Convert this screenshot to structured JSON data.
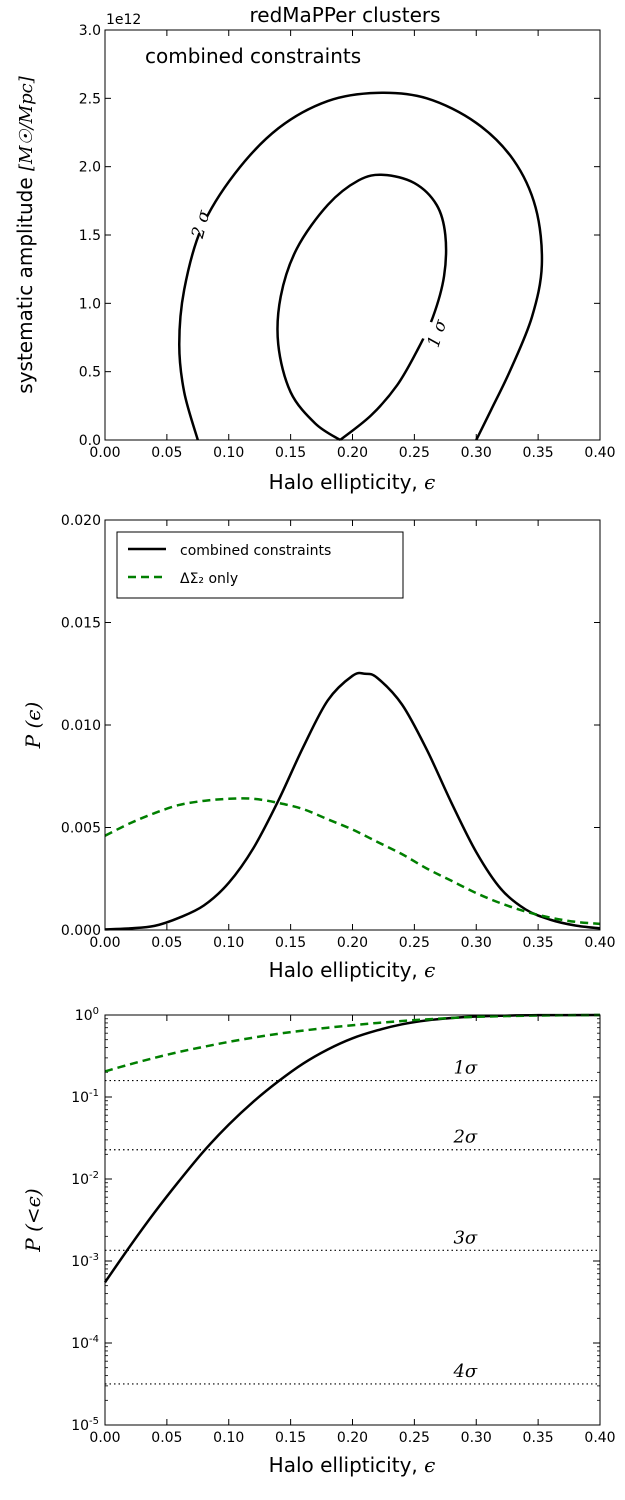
{
  "chart_data": [
    {
      "type": "contour",
      "title": "redMaPPer clusters",
      "annotation": "combined constraints",
      "xlabel": "Halo ellipticity, ",
      "xlabel_symbol": "ϵ",
      "ylabel": "systematic amplitude ",
      "ylabel_unit": "[M☉/Mpc]",
      "offset_label": "1e12",
      "xlim": [
        0.0,
        0.4
      ],
      "ylim": [
        0.0,
        3.0
      ],
      "xticks": [
        "0.00",
        "0.05",
        "0.10",
        "0.15",
        "0.20",
        "0.25",
        "0.30",
        "0.35",
        "0.40"
      ],
      "yticks": [
        "0.0",
        "0.5",
        "1.0",
        "1.5",
        "2.0",
        "2.5",
        "3.0"
      ],
      "contours": [
        {
          "label": "1 σ",
          "points": [
            [
              0.19,
              0.0
            ],
            [
              0.17,
              0.12
            ],
            [
              0.15,
              0.35
            ],
            [
              0.14,
              0.7
            ],
            [
              0.142,
              1.05
            ],
            [
              0.155,
              1.4
            ],
            [
              0.18,
              1.72
            ],
            [
              0.205,
              1.9
            ],
            [
              0.225,
              1.94
            ],
            [
              0.25,
              1.88
            ],
            [
              0.268,
              1.72
            ],
            [
              0.275,
              1.5
            ],
            [
              0.274,
              1.2
            ],
            [
              0.265,
              0.9
            ],
            [
              0.252,
              0.65
            ],
            [
              0.236,
              0.4
            ],
            [
              0.215,
              0.18
            ],
            [
              0.19,
              0.0
            ]
          ]
        },
        {
          "label": "2 σ",
          "points": [
            [
              0.075,
              0.0
            ],
            [
              0.064,
              0.35
            ],
            [
              0.06,
              0.7
            ],
            [
              0.064,
              1.1
            ],
            [
              0.078,
              1.55
            ],
            [
              0.105,
              1.95
            ],
            [
              0.14,
              2.28
            ],
            [
              0.18,
              2.48
            ],
            [
              0.22,
              2.54
            ],
            [
              0.26,
              2.5
            ],
            [
              0.3,
              2.32
            ],
            [
              0.33,
              2.05
            ],
            [
              0.348,
              1.7
            ],
            [
              0.353,
              1.28
            ],
            [
              0.345,
              0.9
            ],
            [
              0.328,
              0.52
            ],
            [
              0.312,
              0.22
            ],
            [
              0.3,
              0.0
            ]
          ]
        }
      ],
      "contour_labels": [
        {
          "text": "2 σ",
          "x": 0.077,
          "y": 1.58
        },
        {
          "text": "1 σ",
          "x": 0.268,
          "y": 0.78
        }
      ]
    },
    {
      "type": "line",
      "xlabel": "Halo ellipticity, ",
      "xlabel_symbol": "ϵ",
      "ylabel": "P (ϵ)",
      "xlim": [
        0.0,
        0.4
      ],
      "ylim": [
        0.0,
        0.02
      ],
      "xticks": [
        "0.00",
        "0.05",
        "0.10",
        "0.15",
        "0.20",
        "0.25",
        "0.30",
        "0.35",
        "0.40"
      ],
      "yticks": [
        "0.000",
        "0.005",
        "0.010",
        "0.015",
        "0.020"
      ],
      "legend": [
        "combined constraints",
        "ΔΣ₂ only"
      ],
      "series": [
        {
          "name": "combined constraints",
          "color": "#000000",
          "dash": "solid",
          "x": [
            0.0,
            0.02,
            0.04,
            0.06,
            0.08,
            0.1,
            0.12,
            0.14,
            0.16,
            0.18,
            0.2,
            0.21,
            0.22,
            0.24,
            0.26,
            0.28,
            0.3,
            0.32,
            0.34,
            0.36,
            0.38,
            0.4
          ],
          "y": [
            3e-05,
            8e-05,
            0.0002,
            0.0006,
            0.0012,
            0.0023,
            0.004,
            0.0063,
            0.0089,
            0.0112,
            0.0124,
            0.0125,
            0.0123,
            0.011,
            0.0088,
            0.0062,
            0.0038,
            0.002,
            0.001,
            0.0005,
            0.00022,
            8e-05
          ]
        },
        {
          "name": "ΔΣ₂ only",
          "color": "#007f00",
          "dash": "dashed",
          "x": [
            0.0,
            0.02,
            0.04,
            0.06,
            0.08,
            0.1,
            0.12,
            0.14,
            0.16,
            0.18,
            0.2,
            0.22,
            0.24,
            0.26,
            0.28,
            0.3,
            0.32,
            0.34,
            0.36,
            0.38,
            0.4
          ],
          "y": [
            0.0046,
            0.0052,
            0.0057,
            0.0061,
            0.0063,
            0.0064,
            0.0064,
            0.0062,
            0.0059,
            0.0054,
            0.0049,
            0.0043,
            0.0037,
            0.003,
            0.0024,
            0.0018,
            0.0013,
            0.0009,
            0.0006,
            0.0004,
            0.0003
          ]
        }
      ]
    },
    {
      "type": "line",
      "scale": "log",
      "xlabel": "Halo ellipticity, ",
      "xlabel_symbol": "ϵ",
      "ylabel": "P (<ϵ)",
      "xlim": [
        0.0,
        0.4
      ],
      "ylim_exp": [
        -5,
        0
      ],
      "xticks": [
        "0.00",
        "0.05",
        "0.10",
        "0.15",
        "0.20",
        "0.25",
        "0.30",
        "0.35",
        "0.40"
      ],
      "ytick_base": "10",
      "ytick_exps": [
        "0",
        "-1",
        "-2",
        "-3",
        "-4",
        "-5"
      ],
      "hlines": [
        {
          "label": "1σ",
          "y": 0.1587
        },
        {
          "label": "2σ",
          "y": 0.02275
        },
        {
          "label": "3σ",
          "y": 0.00135
        },
        {
          "label": "4σ",
          "y": 3.17e-05
        }
      ],
      "series": [
        {
          "name": "combined constraints",
          "color": "#000000",
          "dash": "solid",
          "x": [
            0.0,
            0.02,
            0.04,
            0.06,
            0.08,
            0.1,
            0.12,
            0.14,
            0.16,
            0.18,
            0.2,
            0.22,
            0.24,
            0.26,
            0.28,
            0.3,
            0.32,
            0.35,
            0.4
          ],
          "y": [
            0.00055,
            0.0015,
            0.0039,
            0.0095,
            0.022,
            0.046,
            0.088,
            0.155,
            0.255,
            0.38,
            0.52,
            0.65,
            0.77,
            0.86,
            0.92,
            0.96,
            0.98,
            0.995,
            1.0
          ]
        },
        {
          "name": "ΔΣ₂ only",
          "color": "#007f00",
          "dash": "dashed",
          "x": [
            0.0,
            0.02,
            0.04,
            0.06,
            0.08,
            0.1,
            0.12,
            0.14,
            0.16,
            0.18,
            0.2,
            0.22,
            0.24,
            0.26,
            0.28,
            0.3,
            0.35,
            0.4
          ],
          "y": [
            0.205,
            0.25,
            0.3,
            0.355,
            0.41,
            0.47,
            0.53,
            0.59,
            0.645,
            0.7,
            0.75,
            0.8,
            0.845,
            0.885,
            0.92,
            0.95,
            0.985,
            1.0
          ]
        }
      ]
    }
  ]
}
